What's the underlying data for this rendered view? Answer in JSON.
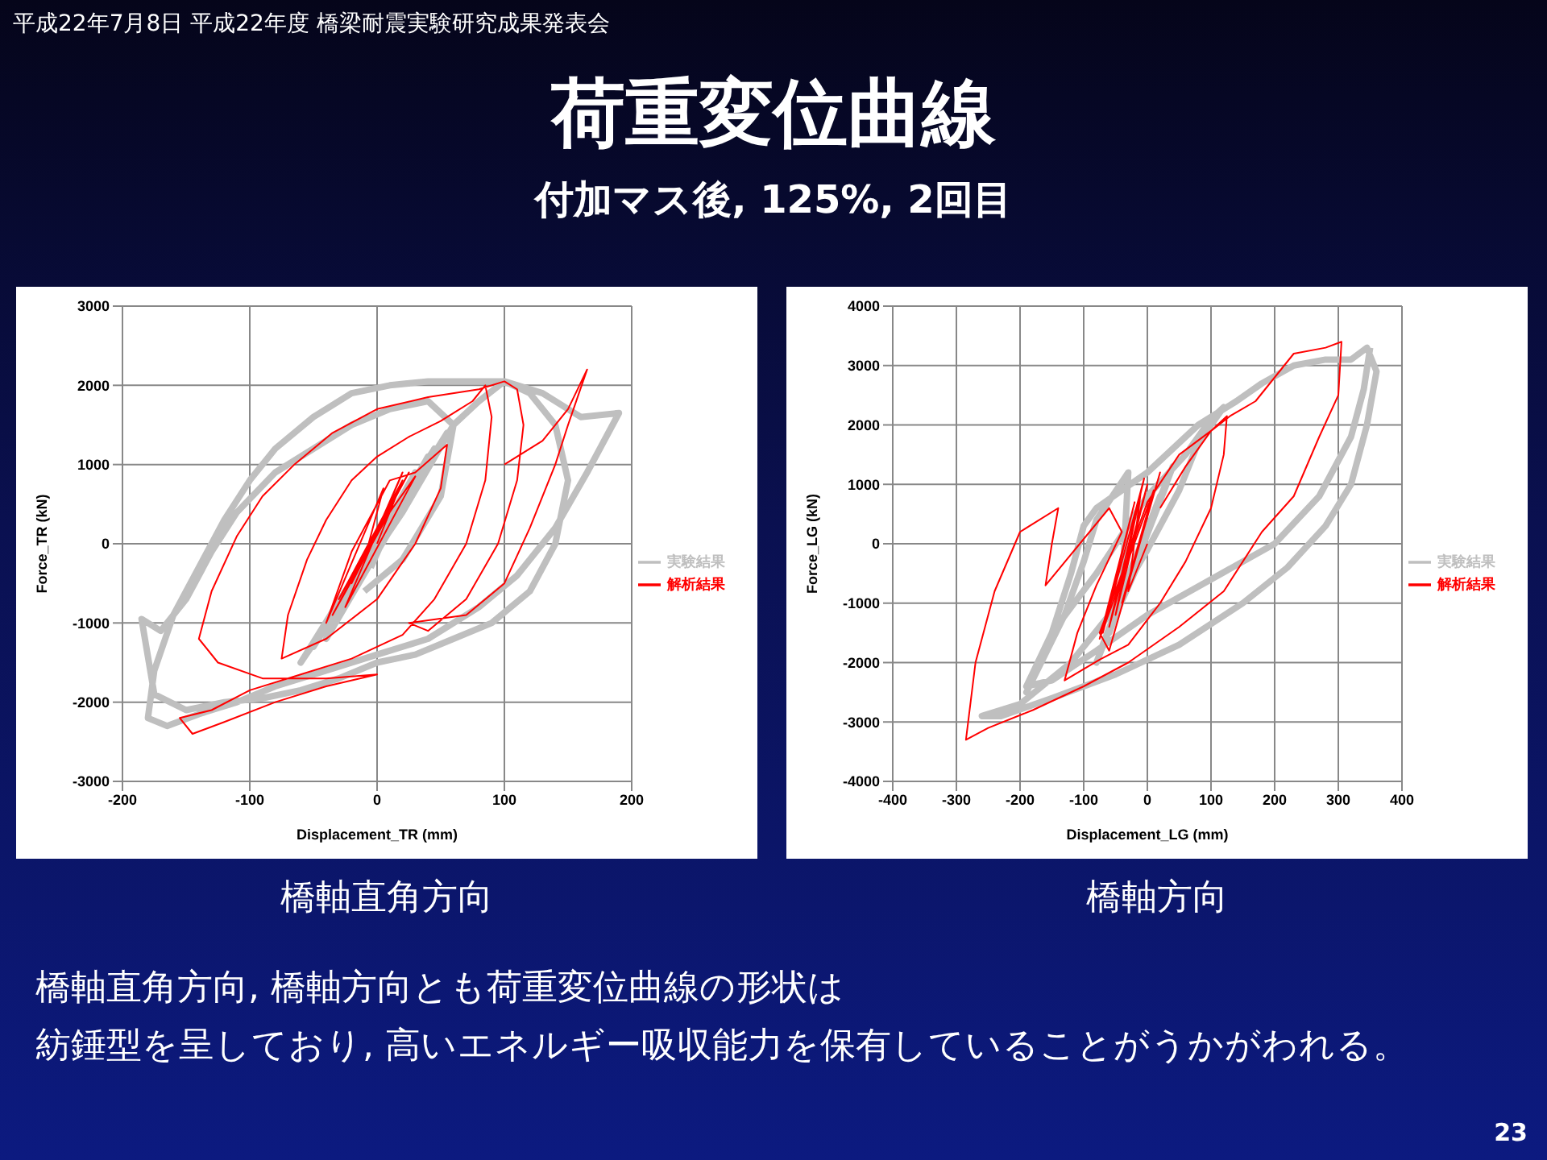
{
  "chart_data": [
    {
      "type": "line",
      "title": "荷重変位曲線",
      "subtitle": "付加マス後, 125%, 2回目",
      "annotations": [
        "平成22年7月8日  平成22年度  橋梁耐震実験研究成果発表会",
        "橋軸直角方向",
        "橋軸直角方向, 橋軸方向とも荷重変位曲線の形状は",
        "紡錘型を呈しており, 高いエネルギー吸収能力を保有していることがうかがわれる。",
        "23"
      ],
      "xlabel": "Displacement_TR (mm)",
      "ylabel": "Force_TR (kN)",
      "xlim": [
        -200,
        200
      ],
      "xticks": [
        -200,
        -100,
        0,
        100,
        200
      ],
      "ylim": [
        -3000,
        3000
      ],
      "yticks": [
        -3000,
        -2000,
        -1000,
        0,
        1000,
        2000,
        3000
      ],
      "grid": true,
      "legend": "right",
      "marker": "none",
      "line_style": "solid",
      "series": [
        {
          "name": "実験結果",
          "color": "#bfbfbf",
          "x": [
            -5,
            20,
            -25,
            30,
            -30,
            40,
            -40,
            55,
            -50,
            45,
            -60,
            20,
            60,
            80,
            100,
            130,
            160,
            190,
            185,
            165,
            140,
            110,
            80,
            40,
            0,
            -40,
            -80,
            -110,
            -140,
            -165,
            -180,
            -175,
            -160,
            -140,
            -120,
            -100,
            -80,
            -50,
            -20,
            10,
            40,
            70,
            100,
            120,
            140,
            150,
            140,
            120,
            90,
            60,
            30,
            0,
            -30,
            -60,
            -90,
            -120,
            -150,
            -175,
            -185,
            -170,
            -150,
            -130,
            -110,
            -80,
            -50,
            -20,
            10,
            40,
            60,
            50,
            20,
            -10
          ],
          "values": [
            -300,
            600,
            -700,
            900,
            -900,
            1100,
            -1200,
            1400,
            -1300,
            1200,
            -1500,
            400,
            1500,
            1800,
            2050,
            1900,
            1600,
            1650,
            1500,
            900,
            200,
            -400,
            -800,
            -1200,
            -1400,
            -1600,
            -1800,
            -2000,
            -2150,
            -2300,
            -2200,
            -1600,
            -900,
            -300,
            300,
            800,
            1200,
            1600,
            1900,
            2000,
            2050,
            2050,
            2050,
            1900,
            1500,
            800,
            0,
            -600,
            -1000,
            -1200,
            -1400,
            -1500,
            -1700,
            -1850,
            -1950,
            -2000,
            -2100,
            -1900,
            -950,
            -1100,
            -700,
            -100,
            400,
            900,
            1200,
            1500,
            1700,
            1800,
            1500,
            600,
            -200,
            -600
          ]
        },
        {
          "name": "解析結果",
          "color": "#ff0000",
          "x": [
            0,
            15,
            -20,
            20,
            -30,
            25,
            -35,
            10,
            30,
            -25,
            20,
            -10,
            5,
            -40,
            -20,
            10,
            30,
            55,
            50,
            30,
            0,
            -40,
            -75,
            -70,
            -55,
            -40,
            -20,
            0,
            25,
            50,
            75,
            85,
            90,
            85,
            70,
            45,
            20,
            -20,
            -60,
            -100,
            -130,
            -155,
            -145,
            -120,
            -80,
            -40,
            0,
            -40,
            -90,
            -125,
            -140,
            -130,
            -110,
            -90,
            -65,
            -35,
            0,
            40,
            80,
            100,
            110,
            115,
            110,
            95,
            70,
            40,
            25,
            70,
            100,
            120,
            140,
            150,
            165,
            150,
            130,
            100
          ],
          "values": [
            0,
            600,
            -500,
            800,
            -700,
            900,
            -900,
            400,
            850,
            -800,
            900,
            -200,
            700,
            -1000,
            -100,
            800,
            900,
            1250,
            700,
            0,
            -700,
            -1200,
            -1450,
            -900,
            -200,
            300,
            800,
            1100,
            1350,
            1550,
            1800,
            2000,
            1600,
            800,
            0,
            -700,
            -1150,
            -1450,
            -1650,
            -1850,
            -2100,
            -2200,
            -2400,
            -2250,
            -2000,
            -1800,
            -1650,
            -1700,
            -1700,
            -1500,
            -1200,
            -600,
            100,
            600,
            1000,
            1400,
            1700,
            1850,
            1950,
            2050,
            1950,
            1500,
            800,
            0,
            -700,
            -1100,
            -1000,
            -900,
            -500,
            200,
            1000,
            1500,
            2200,
            1700,
            1300,
            1000
          ]
        }
      ]
    },
    {
      "type": "line",
      "annotations": [
        "橋軸方向"
      ],
      "xlabel": "Displacement_LG (mm)",
      "ylabel": "Force_LG (kN)",
      "xlim": [
        -400,
        400
      ],
      "xticks": [
        -400,
        -300,
        -200,
        -100,
        0,
        100,
        200,
        300,
        400
      ],
      "ylim": [
        -4000,
        4000
      ],
      "yticks": [
        -4000,
        -3000,
        -2000,
        -1000,
        0,
        1000,
        2000,
        3000,
        4000
      ],
      "grid": true,
      "legend": "right",
      "marker": "none",
      "line_style": "solid",
      "series": [
        {
          "name": "実験結果",
          "color": "#bfbfbf",
          "x": [
            0,
            -50,
            20,
            -70,
            10,
            -80,
            30,
            -60,
            40,
            -40,
            -30,
            -80,
            -100,
            -130,
            -190,
            -150,
            -80,
            0,
            60,
            100,
            120,
            80,
            50,
            0,
            -60,
            -120,
            -200,
            -260,
            -230,
            -150,
            -50,
            50,
            150,
            220,
            280,
            320,
            345,
            360,
            345,
            320,
            280,
            230,
            180,
            140,
            110,
            80,
            40,
            0,
            -40,
            -80,
            -100,
            -120,
            -150,
            -190,
            -150,
            -80,
            0,
            100,
            200,
            270,
            320,
            340,
            350
          ],
          "values": [
            0,
            -1200,
            800,
            -1700,
            500,
            -2000,
            1000,
            -1500,
            1300,
            -800,
            1200,
            400,
            -300,
            -1200,
            -2500,
            -1500,
            -500,
            800,
            1500,
            2100,
            2300,
            1700,
            900,
            -100,
            -1200,
            -2000,
            -2700,
            -2900,
            -2900,
            -2600,
            -2200,
            -1700,
            -1000,
            -400,
            300,
            1000,
            2000,
            2900,
            3300,
            3100,
            3100,
            3000,
            2700,
            2400,
            2200,
            2000,
            1600,
            1200,
            900,
            600,
            300,
            -500,
            -1500,
            -2400,
            -2300,
            -1800,
            -1200,
            -600,
            0,
            800,
            1800,
            2600,
            3300
          ]
        },
        {
          "name": "解析結果",
          "color": "#ff0000",
          "x": [
            0,
            -30,
            -10,
            -50,
            0,
            -60,
            -5,
            -70,
            -20,
            -75,
            10,
            -40,
            20,
            -60,
            -75,
            -40,
            0,
            50,
            100,
            125,
            120,
            100,
            60,
            20,
            -30,
            -75,
            -130,
            -110,
            -80,
            -40,
            -60,
            -160,
            -150,
            -140,
            -200,
            -240,
            -270,
            -285,
            -250,
            -180,
            -100,
            -30,
            50,
            120,
            180,
            230,
            270,
            300,
            305,
            280,
            230,
            170,
            130,
            100,
            60,
            20
          ],
          "values": [
            0,
            -800,
            900,
            -1200,
            1000,
            -1400,
            1100,
            -1500,
            700,
            -1600,
            900,
            -1000,
            1200,
            -1800,
            -1500,
            -500,
            700,
            1500,
            1900,
            2150,
            1500,
            600,
            -300,
            -1000,
            -1700,
            -1950,
            -2300,
            -1500,
            -700,
            200,
            600,
            -700,
            0,
            600,
            200,
            -800,
            -2000,
            -3300,
            -3100,
            -2800,
            -2400,
            -2000,
            -1400,
            -800,
            200,
            800,
            1800,
            2500,
            3400,
            3300,
            3200,
            2400,
            2150,
            1900,
            1300,
            600
          ]
        }
      ]
    }
  ]
}
